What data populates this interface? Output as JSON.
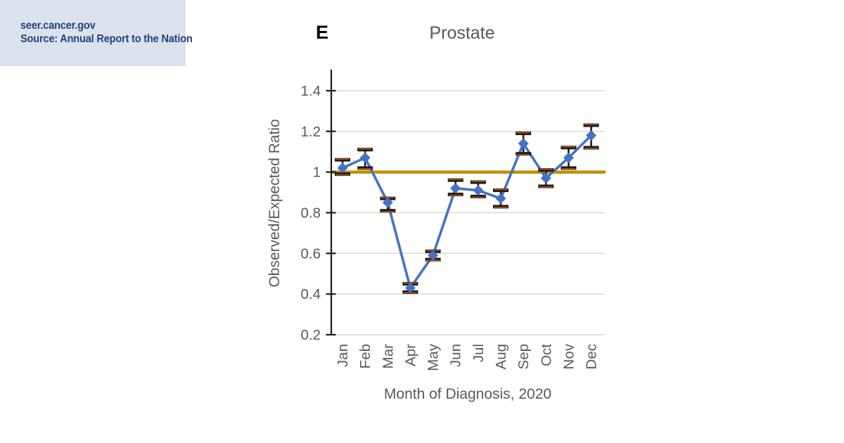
{
  "badge": {
    "site": "seer.cancer.gov",
    "source": "Source: Annual Report to the Nation",
    "bg_color": "#dbe2ec",
    "text_color": "#24407c"
  },
  "chart_data": {
    "type": "line",
    "panel_label": "E",
    "title": "Prostate",
    "xlabel": "Month of Diagnosis, 2020",
    "ylabel": "Observed/Expected Ratio",
    "categories": [
      "Jan",
      "Feb",
      "Mar",
      "Apr",
      "May",
      "Jun",
      "Jul",
      "Aug",
      "Sep",
      "Oct",
      "Nov",
      "Dec"
    ],
    "series": [
      {
        "name": "Observed/Expected Ratio",
        "marker": "diamond",
        "values": [
          1.02,
          1.07,
          0.85,
          0.43,
          0.59,
          0.92,
          0.91,
          0.87,
          1.14,
          0.97,
          1.07,
          1.18
        ],
        "ci_low": [
          0.99,
          1.02,
          0.81,
          0.41,
          0.57,
          0.89,
          0.88,
          0.83,
          1.09,
          0.93,
          1.02,
          1.12
        ],
        "ci_high": [
          1.06,
          1.11,
          0.87,
          0.45,
          0.61,
          0.96,
          0.95,
          0.91,
          1.19,
          1.01,
          1.12,
          1.23
        ]
      }
    ],
    "reference_line": 1.0,
    "ylim": [
      0.2,
      1.5
    ],
    "yticks": [
      0.2,
      0.4,
      0.6,
      0.8,
      1.0,
      1.2,
      1.4
    ],
    "ytick_labels": [
      "0.2",
      "0.4",
      "0.6",
      "0.8",
      "1",
      "1.2",
      "1.4"
    ],
    "grid": "horizontal",
    "legend": "none",
    "colors": {
      "series": "#4472C4",
      "reference": "#BF9000",
      "error_bar": "#1a1a1a",
      "error_cap_accent": "#C0560F",
      "gridline": "#d9d9d9",
      "axis": "#1a1a1a",
      "tick_label": "#595959",
      "title": "#595959"
    }
  }
}
